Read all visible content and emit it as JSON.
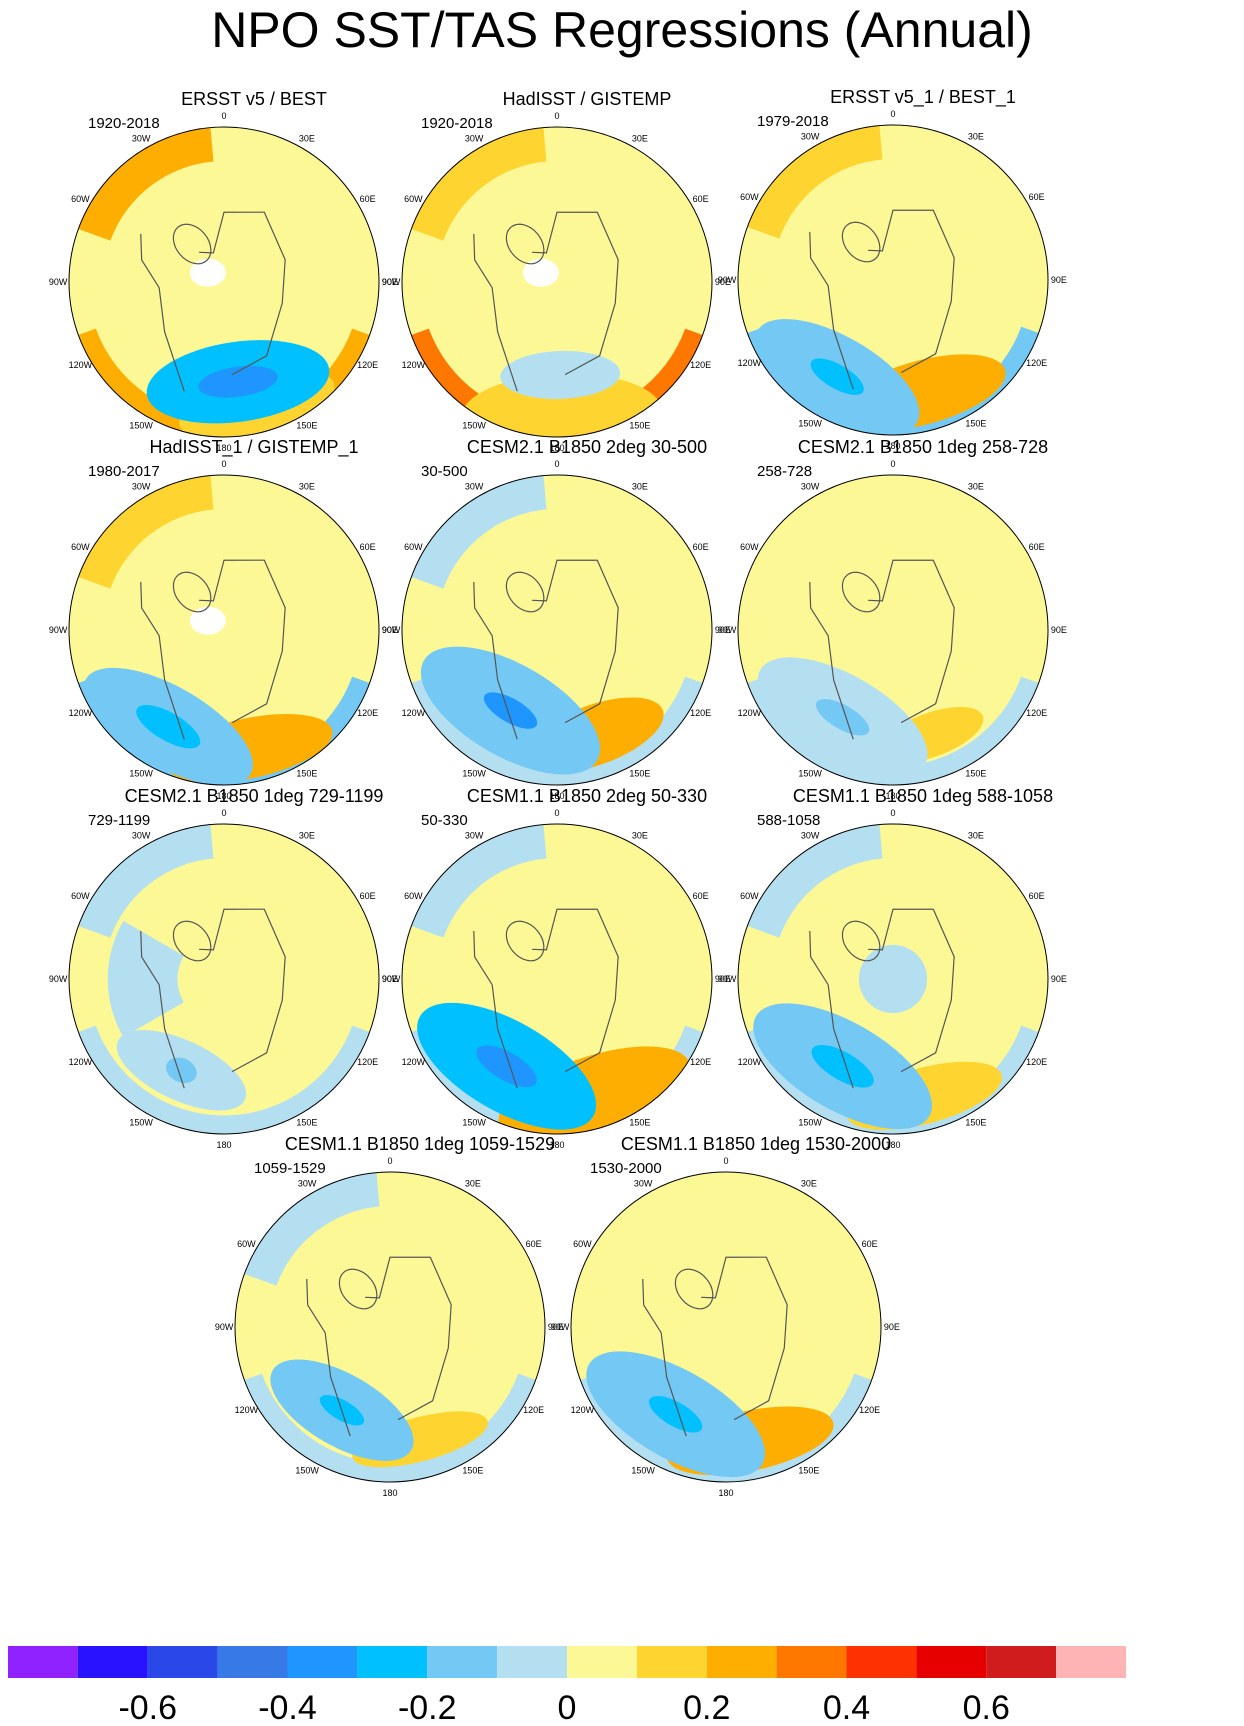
{
  "figure": {
    "title": "NPO SST/TAS Regressions (Annual)"
  },
  "chart_data": {
    "type": "heatmap",
    "projection": "north polar stereographic",
    "longitude_labels": [
      "180",
      "150E",
      "120E",
      "90E",
      "60E",
      "30E",
      "0",
      "30W",
      "60W",
      "90W",
      "120W",
      "150W"
    ],
    "colorbar": {
      "colors": [
        "#8f22ff",
        "#2812ff",
        "#2a47e8",
        "#3779e6",
        "#1f96ff",
        "#00c0ff",
        "#74c8f4",
        "#b4dff1",
        "#fdf896",
        "#fed530",
        "#feae00",
        "#fe7800",
        "#fe3200",
        "#e60000",
        "#d01c1c",
        "#feb4b4"
      ],
      "tick_labels": [
        "-0.6",
        "-0.4",
        "-0.2",
        "0",
        "0.2",
        "0.4",
        "0.6"
      ]
    },
    "panels": [
      {
        "title": "ERSST v5 / BEST",
        "period": "1920-2018",
        "npac_neg": {
          "level": 5,
          "rx": 92,
          "ry": 40,
          "lon": 172,
          "r": 0.65
        },
        "npac_neg_core": {
          "level": 4,
          "rx": 40,
          "ry": 15
        },
        "npac_pos": {
          "level": 9,
          "rx": 80,
          "ry": 30,
          "lon": 165,
          "r": 0.82
        },
        "rim_pacific": 10,
        "atlantic": 10,
        "eurasia": 8,
        "arctic": 8,
        "n_america": 8,
        "ice_hole": true
      },
      {
        "title": "HadISST / GISTEMP",
        "period": "1920-2018",
        "npac_neg": {
          "level": 7,
          "rx": 60,
          "ry": 24,
          "lon": 178,
          "r": 0.6
        },
        "npac_neg_core": {
          "level": 7,
          "rx": 20,
          "ry": 8
        },
        "npac_pos": {
          "level": 9,
          "rx": 100,
          "ry": 40,
          "lon": 178,
          "r": 0.85
        },
        "rim_pacific": 11,
        "atlantic": 9,
        "eurasia": 8,
        "arctic": 8,
        "n_america": 8,
        "ice_hole": true
      },
      {
        "title": "ERSST v5_1 / BEST_1",
        "period": "1979-2018",
        "npac_neg": {
          "level": 6,
          "rx": 92,
          "ry": 40,
          "lon": -150,
          "r": 0.72
        },
        "npac_neg_core": {
          "level": 5,
          "rx": 30,
          "ry": 12
        },
        "npac_pos": {
          "level": 10,
          "rx": 85,
          "ry": 32,
          "lon": 165,
          "r": 0.75
        },
        "rim_pacific": 6,
        "atlantic": 9,
        "eurasia": 8,
        "arctic": 8,
        "n_america": 8,
        "ice_hole": false
      },
      {
        "title": "HadISST_1 / GISTEMP_1",
        "period": "1980-2017",
        "npac_neg": {
          "level": 6,
          "rx": 95,
          "ry": 40,
          "lon": -150,
          "r": 0.72
        },
        "npac_neg_core": {
          "level": 5,
          "rx": 36,
          "ry": 14
        },
        "npac_pos": {
          "level": 10,
          "rx": 85,
          "ry": 30,
          "lon": 168,
          "r": 0.78
        },
        "rim_pacific": 6,
        "atlantic": 9,
        "eurasia": 8,
        "arctic": 8,
        "n_america": 8,
        "ice_hole": true
      },
      {
        "title": "CESM2.1 B1850 2deg 30-500",
        "period": "30-500",
        "npac_neg": {
          "level": 6,
          "rx": 100,
          "ry": 46,
          "lon": -150,
          "r": 0.6
        },
        "npac_neg_core": {
          "level": 4,
          "rx": 30,
          "ry": 12
        },
        "npac_pos": {
          "level": 10,
          "rx": 72,
          "ry": 30,
          "lon": 160,
          "r": 0.72
        },
        "rim_pacific": 7,
        "atlantic": 7,
        "eurasia": 8,
        "arctic": 8,
        "n_america": 8,
        "ice_hole": false
      },
      {
        "title": "CESM2.1 B1850 1deg 258-728",
        "period": "258-728",
        "npac_neg": {
          "level": 7,
          "rx": 95,
          "ry": 42,
          "lon": -150,
          "r": 0.65
        },
        "npac_neg_core": {
          "level": 6,
          "rx": 30,
          "ry": 12
        },
        "npac_pos": {
          "level": 9,
          "rx": 55,
          "ry": 22,
          "lon": 160,
          "r": 0.72
        },
        "rim_pacific": 7,
        "atlantic": 8,
        "eurasia": 8,
        "arctic": 8,
        "n_america": 8,
        "ice_hole": false
      },
      {
        "title": "CESM2.1 B1850 1deg 729-1199",
        "period": "729-1199",
        "npac_neg": {
          "level": 7,
          "rx": 70,
          "ry": 30,
          "lon": -155,
          "r": 0.65
        },
        "npac_neg_core": {
          "level": 6,
          "rx": 16,
          "ry": 12
        },
        "npac_pos": {
          "level": 8,
          "rx": 40,
          "ry": 15,
          "lon": 170,
          "r": 0.75
        },
        "rim_pacific": 7,
        "atlantic": 7,
        "eurasia": 8,
        "arctic": 8,
        "n_america": 7,
        "ice_hole": false
      },
      {
        "title": "CESM1.1 B1850 2deg 50-330",
        "period": "50-330",
        "npac_neg": {
          "level": 5,
          "rx": 100,
          "ry": 45,
          "lon": -150,
          "r": 0.65
        },
        "npac_neg_core": {
          "level": 4,
          "rx": 34,
          "ry": 14
        },
        "npac_pos": {
          "level": 10,
          "rx": 100,
          "ry": 38,
          "lon": 162,
          "r": 0.78
        },
        "rim_pacific": 7,
        "atlantic": 7,
        "eurasia": 8,
        "arctic": 8,
        "n_america": 8,
        "ice_hole": false
      },
      {
        "title": "CESM1.1 B1850 1deg 588-1058",
        "period": "588-1058",
        "npac_neg": {
          "level": 6,
          "rx": 100,
          "ry": 44,
          "lon": -150,
          "r": 0.65
        },
        "npac_neg_core": {
          "level": 5,
          "rx": 35,
          "ry": 14
        },
        "npac_pos": {
          "level": 9,
          "rx": 80,
          "ry": 28,
          "lon": 165,
          "r": 0.78
        },
        "rim_pacific": 7,
        "atlantic": 7,
        "eurasia": 8,
        "arctic": 7,
        "n_america": 8,
        "ice_hole": false
      },
      {
        "title": "CESM1.1 B1850 1deg 1059-1529",
        "period": "1059-1529",
        "npac_neg": {
          "level": 6,
          "rx": 80,
          "ry": 36,
          "lon": -150,
          "r": 0.62
        },
        "npac_neg_core": {
          "level": 5,
          "rx": 25,
          "ry": 10
        },
        "npac_pos": {
          "level": 9,
          "rx": 70,
          "ry": 22,
          "lon": 165,
          "r": 0.75
        },
        "rim_pacific": 7,
        "atlantic": 7,
        "eurasia": 8,
        "arctic": 8,
        "n_america": 8,
        "ice_hole": false
      },
      {
        "title": "CESM1.1 B1850 1deg 1530-2000",
        "period": "1530-2000",
        "npac_neg": {
          "level": 6,
          "rx": 100,
          "ry": 44,
          "lon": -150,
          "r": 0.65
        },
        "npac_neg_core": {
          "level": 5,
          "rx": 30,
          "ry": 12
        },
        "npac_pos": {
          "level": 10,
          "rx": 85,
          "ry": 30,
          "lon": 168,
          "r": 0.75
        },
        "rim_pacific": 7,
        "atlantic": 8,
        "eurasia": 8,
        "arctic": 8,
        "n_america": 8,
        "ice_hole": false
      }
    ]
  }
}
